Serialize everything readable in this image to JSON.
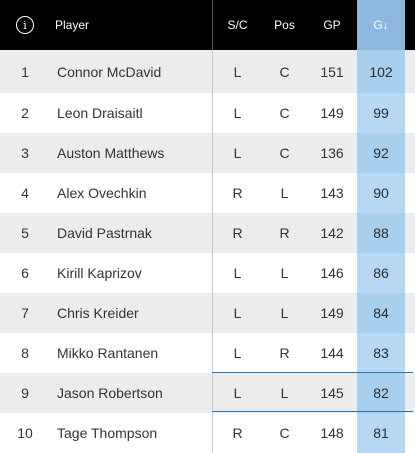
{
  "header": {
    "info_icon_glyph": "i",
    "player": "Player",
    "sc": "S/C",
    "pos": "Pos",
    "gp": "GP",
    "g": "G↓"
  },
  "rows": [
    {
      "rank": "1",
      "player": "Connor McDavid",
      "sc": "L",
      "pos": "C",
      "gp": "151",
      "g": "102"
    },
    {
      "rank": "2",
      "player": "Leon Draisaitl",
      "sc": "L",
      "pos": "C",
      "gp": "149",
      "g": "99"
    },
    {
      "rank": "3",
      "player": "Auston Matthews",
      "sc": "L",
      "pos": "C",
      "gp": "136",
      "g": "92"
    },
    {
      "rank": "4",
      "player": "Alex Ovechkin",
      "sc": "R",
      "pos": "L",
      "gp": "143",
      "g": "90"
    },
    {
      "rank": "5",
      "player": "David Pastrnak",
      "sc": "R",
      "pos": "R",
      "gp": "142",
      "g": "88"
    },
    {
      "rank": "6",
      "player": "Kirill Kaprizov",
      "sc": "L",
      "pos": "L",
      "gp": "146",
      "g": "86"
    },
    {
      "rank": "7",
      "player": "Chris Kreider",
      "sc": "L",
      "pos": "L",
      "gp": "149",
      "g": "84"
    },
    {
      "rank": "8",
      "player": "Mikko Rantanen",
      "sc": "L",
      "pos": "R",
      "gp": "144",
      "g": "83"
    },
    {
      "rank": "9",
      "player": "Jason Robertson",
      "sc": "L",
      "pos": "L",
      "gp": "145",
      "g": "82"
    },
    {
      "rank": "10",
      "player": "Tage Thompson",
      "sc": "R",
      "pos": "C",
      "gp": "148",
      "g": "81"
    }
  ],
  "colors": {
    "header_bg": "#000000",
    "row_shaded": "#ececec",
    "sorted_column": "#b7d7f3",
    "highlight_rule": "#1f78c1"
  }
}
